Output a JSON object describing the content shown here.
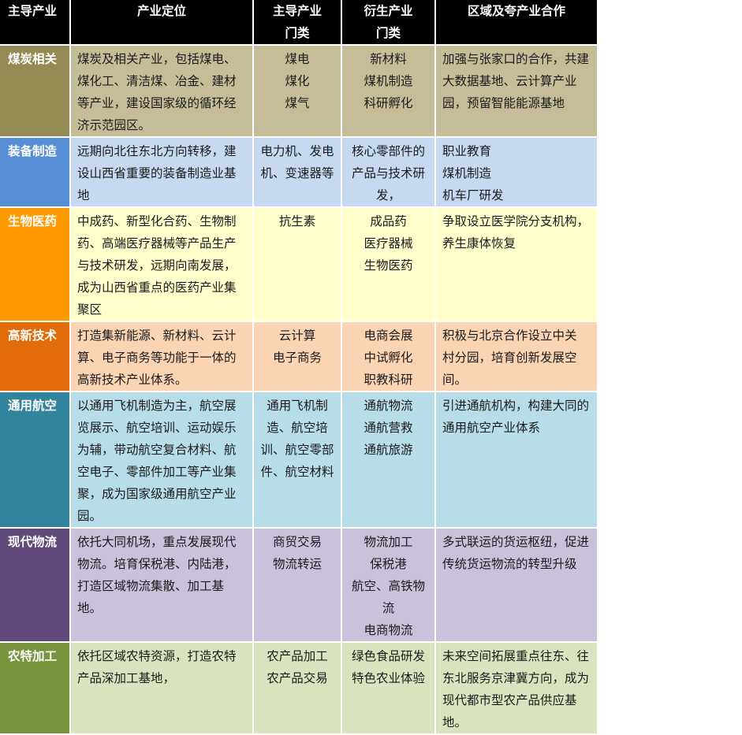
{
  "header": [
    "主导产业",
    "产业定位",
    "主导产业\n门类",
    "衍生产业\n门类",
    "区域及夸产业合作"
  ],
  "rows": [
    {
      "name": "煤炭相关",
      "positioning": "煤炭及相关产业，包括煤电、\n煤化工、清洁煤、冶金、建材\n等产业，建设国家级的循环经\n济示范园区。",
      "main": "煤电\n煤化\n煤气",
      "derived": "新材料\n煤机制造\n科研孵化",
      "cooperation": "加强与张家口的合作，共建\n大数据基地、云计算产业\n园，预留智能能源基地",
      "label_color": "#948a54",
      "body_color": "#c4bd97"
    },
    {
      "name": "装备制造",
      "positioning": "远期向北往东北方向转移，建\n设山西省重要的装备制造业基\n地",
      "main": "电力机、发电\n机、变速器等",
      "derived": "核心零部件的\n产品与技术研\n发，",
      "cooperation": "职业教育\n煤机制造\n机车厂研发",
      "label_color": "#558ed5",
      "body_color": "#c6d9f1"
    },
    {
      "name": "生物医药",
      "positioning": "中成药、新型化合药、生物制\n药、高端医疗器械等产品生产\n与技术研发，远期向南发展，\n成为山西省重点的医药产业集\n聚区",
      "main": "抗生素",
      "derived": "成品药\n医疗器械\n生物医药",
      "cooperation": "争取设立医学院分支机构，\n养生康体恢复",
      "label_color": "#ff9900",
      "body_color": "#ffffcc"
    },
    {
      "name": "高新技术",
      "positioning": "打造集新能源、新材料、云计\n算、电子商务等功能于一体的\n高新技术产业体系。",
      "main": "云计算\n电子商务",
      "derived": "电商会展\n中试孵化\n职教科研",
      "cooperation": "积极与北京合作设立中关\n村分园，培育创新发展空\n间。",
      "label_color": "#e26b0a",
      "body_color": "#fbd4b4"
    },
    {
      "name": "通用航空",
      "positioning": "以通用飞机制造为主，航空展\n览展示、航空培训、运动娱乐\n为辅，带动航空复合材料、航\n空电子、零部件加工等产业集\n聚，成为国家级通用航空产业\n园。",
      "main": "通用飞机制\n造、航空培\n训、航空零部\n件、航空材料",
      "derived": "通航物流\n通航营救\n通航旅游",
      "cooperation": "引进通航机构，构建大同的\n通用航空产业体系",
      "label_color": "#31849b",
      "body_color": "#b7dde8"
    },
    {
      "name": "现代物流",
      "positioning": "依托大同机场，重点发展现代\n物流。培育保税港、内陆港，\n打造区域物流集散、加工基地。",
      "main": "商贸交易\n物流转运",
      "derived": "物流加工\n保税港\n航空、高铁物\n流\n电商物流",
      "cooperation": "多式联运的货运枢纽，促进\n传统货运物流的转型升级",
      "label_color": "#604a7b",
      "body_color": "#ccc1da"
    },
    {
      "name": "农特加工",
      "positioning": "依托区域农特资源，打造农特\n产品深加工基地，",
      "main": "农产品加工\n农产品交易",
      "derived": "绿色食品研发\n特色农业体验",
      "cooperation": "未来空间拓展重点往东、往\n东北服务京津冀方向，成为\n现代都市型农产品供应基\n地。",
      "label_color": "#77933c",
      "body_color": "#d7e4bd"
    }
  ]
}
